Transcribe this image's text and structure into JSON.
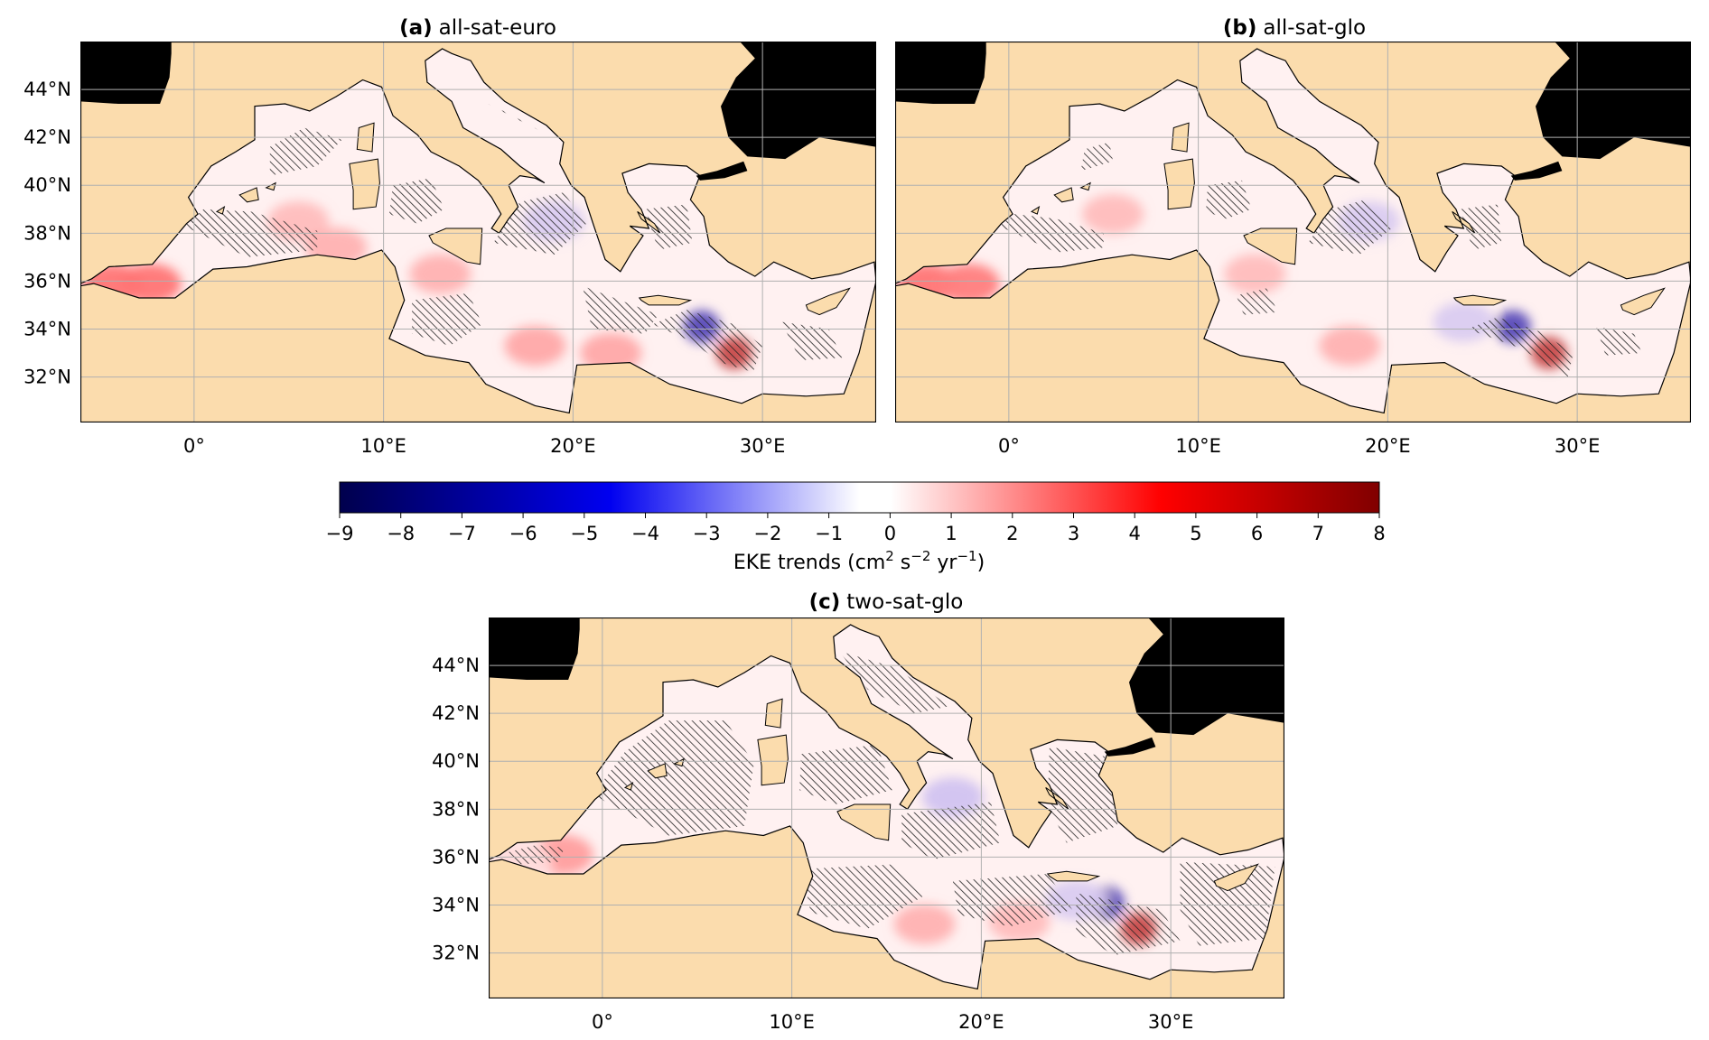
{
  "figure": {
    "panels": [
      {
        "id": "a",
        "title_prefix": "(a)",
        "title_name": "all-sat-euro",
        "lon_ticks": [
          "0°",
          "10°E",
          "20°E",
          "30°E"
        ],
        "lat_ticks": [
          "44°N",
          "42°N",
          "40°N",
          "38°N",
          "36°N",
          "34°N",
          "32°N"
        ],
        "lon_values": [
          0,
          10,
          20,
          30
        ],
        "lat_values": [
          44,
          42,
          40,
          38,
          36,
          34,
          32
        ],
        "extent": {
          "lon": [
            -6,
            36
          ],
          "lat": [
            30.1,
            46
          ]
        },
        "hatching": "dense"
      },
      {
        "id": "b",
        "title_prefix": "(b)",
        "title_name": "all-sat-glo",
        "lon_ticks": [
          "0°",
          "10°E",
          "20°E",
          "30°E"
        ],
        "lat_ticks": [],
        "lon_values": [
          0,
          10,
          20,
          30
        ],
        "lat_values": [
          44,
          42,
          40,
          38,
          36,
          34,
          32
        ],
        "extent": {
          "lon": [
            -6,
            36
          ],
          "lat": [
            30.1,
            46
          ]
        },
        "hatching": "medium"
      },
      {
        "id": "c",
        "title_prefix": "(c)",
        "title_name": "two-sat-glo",
        "lon_ticks": [
          "0°",
          "10°E",
          "20°E",
          "30°E"
        ],
        "lat_ticks": [
          "44°N",
          "42°N",
          "40°N",
          "38°N",
          "36°N",
          "34°N",
          "32°N"
        ],
        "lon_values": [
          0,
          10,
          20,
          30
        ],
        "lat_values": [
          44,
          42,
          40,
          38,
          36,
          34,
          32
        ],
        "extent": {
          "lon": [
            -6,
            36
          ],
          "lat": [
            30.1,
            46
          ]
        },
        "hatching": "sparse"
      }
    ],
    "colorbar": {
      "min": -9,
      "max": 8,
      "tick_labels": [
        "−9",
        "−8",
        "−7",
        "−6",
        "−5",
        "−4",
        "−3",
        "−2",
        "−1",
        "0",
        "1",
        "2",
        "3",
        "4",
        "5",
        "6",
        "7",
        "8"
      ],
      "label_main": "EKE trends (cm",
      "label_exp1": "2",
      "label_mid": " s",
      "label_exp2": "−2",
      "label_mid2": " yr",
      "label_exp3": "−1",
      "label_end": ")",
      "colormap": "seismic"
    },
    "colors": {
      "land": "#fbdcad",
      "sea": "#ffffff",
      "black_sea_and_atlantic": "#000000",
      "positive_trend": "#e8000b",
      "negative_trend": "#0000e6",
      "grid": "#b0b0b0"
    }
  },
  "chart_data": {
    "type": "heatmap",
    "description_fields": [
      "lon",
      "lat",
      "eke_trend"
    ],
    "units": "cm2 s-2 yr-1",
    "value_range": [
      -9,
      8
    ],
    "panels": {
      "a": {
        "name": "all-sat-euro",
        "features": [
          {
            "lon": -4.3,
            "lat": 35.9,
            "eke_trend": 6.0
          },
          {
            "lon": -2.3,
            "lat": 35.9,
            "eke_trend": 6.0
          },
          {
            "lon": 28.5,
            "lat": 33.0,
            "eke_trend": 8.0
          },
          {
            "lon": 26.8,
            "lat": 34.1,
            "eke_trend": -9.0
          },
          {
            "lon": 18.0,
            "lat": 33.3,
            "eke_trend": 3.5
          },
          {
            "lon": 22.0,
            "lat": 33.0,
            "eke_trend": 3.5
          },
          {
            "lon": 13.0,
            "lat": 36.3,
            "eke_trend": 3.0
          },
          {
            "lon": 5.5,
            "lat": 38.5,
            "eke_trend": 2.5
          },
          {
            "lon": 7.5,
            "lat": 37.4,
            "eke_trend": 3.0
          },
          {
            "lon": 19.0,
            "lat": 38.5,
            "eke_trend": -2.0
          }
        ]
      },
      "b": {
        "name": "all-sat-glo",
        "features": [
          {
            "lon": -4.3,
            "lat": 35.9,
            "eke_trend": 6.0
          },
          {
            "lon": -2.1,
            "lat": 35.9,
            "eke_trend": 5.5
          },
          {
            "lon": 28.5,
            "lat": 33.0,
            "eke_trend": 8.0
          },
          {
            "lon": 26.6,
            "lat": 34.1,
            "eke_trend": -9.0
          },
          {
            "lon": 18.0,
            "lat": 33.3,
            "eke_trend": 3.0
          },
          {
            "lon": 13.0,
            "lat": 36.3,
            "eke_trend": 2.5
          },
          {
            "lon": 5.5,
            "lat": 38.8,
            "eke_trend": 2.5
          },
          {
            "lon": 19.0,
            "lat": 38.5,
            "eke_trend": -2.0
          },
          {
            "lon": 24.0,
            "lat": 34.3,
            "eke_trend": -2.0
          }
        ]
      },
      "c": {
        "name": "two-sat-glo",
        "features": [
          {
            "lon": -2.1,
            "lat": 36.1,
            "eke_trend": 4.0
          },
          {
            "lon": -4.3,
            "lat": 35.8,
            "eke_trend": 1.0
          },
          {
            "lon": 28.3,
            "lat": 33.0,
            "eke_trend": 8.0
          },
          {
            "lon": 26.6,
            "lat": 34.1,
            "eke_trend": -9.0
          },
          {
            "lon": 17.0,
            "lat": 33.2,
            "eke_trend": 3.0
          },
          {
            "lon": 22.0,
            "lat": 33.3,
            "eke_trend": 2.5
          },
          {
            "lon": 18.5,
            "lat": 38.5,
            "eke_trend": -2.5
          },
          {
            "lon": 25.0,
            "lat": 34.2,
            "eke_trend": -2.0
          }
        ]
      }
    }
  }
}
